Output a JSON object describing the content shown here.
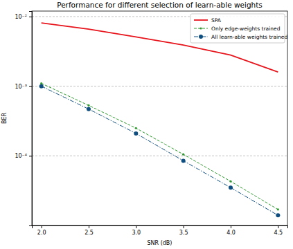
{
  "chart_data": {
    "type": "line",
    "title": "Performance for different selection of learn-able weights",
    "x_label": "SNR (dB)",
    "y_label": "BER",
    "log": "y",
    "grid": "y",
    "legend": "upper right",
    "xlim": [
      1.9,
      4.6
    ],
    "ylim": [
      1e-05,
      0.012
    ],
    "xticks": [
      {
        "value": 2,
        "label": "2.0"
      },
      {
        "value": 2.5,
        "label": "2.5"
      },
      {
        "value": 3,
        "label": "3.0"
      },
      {
        "value": 3.5,
        "label": "3.5"
      },
      {
        "value": 4,
        "label": "4.0"
      },
      {
        "value": 4.5,
        "label": "4.5"
      }
    ],
    "yticks": [
      {
        "value": 0.0001,
        "label": "10⁻⁴"
      },
      {
        "value": 0.001,
        "label": "10⁻³"
      },
      {
        "value": 0.01,
        "label": "10⁻²"
      }
    ],
    "x": [
      2.0,
      2.5,
      3.0,
      3.5,
      4.0,
      4.5
    ],
    "series": [
      {
        "name": "SPA",
        "color": "#e8141c",
        "marker": "none",
        "line_style": "solid",
        "values": [
          0.0081,
          0.0066,
          0.0051,
          0.0039,
          0.0028,
          0.0016
        ]
      },
      {
        "name": "Only edge-weights trained",
        "color": "#2e9a2e",
        "marker": "point",
        "line_style": "dashed",
        "values": [
          0.0011,
          0.00053,
          0.00025,
          0.000105,
          4.3e-05,
          1.7e-05
        ]
      },
      {
        "name": "All learn-able weights trained",
        "color": "#0f4f80",
        "marker": "circle",
        "line_style": "dashdot",
        "values": [
          0.001,
          0.00047,
          0.00021,
          8.5e-05,
          3.5e-05,
          1.4e-05
        ]
      }
    ]
  }
}
